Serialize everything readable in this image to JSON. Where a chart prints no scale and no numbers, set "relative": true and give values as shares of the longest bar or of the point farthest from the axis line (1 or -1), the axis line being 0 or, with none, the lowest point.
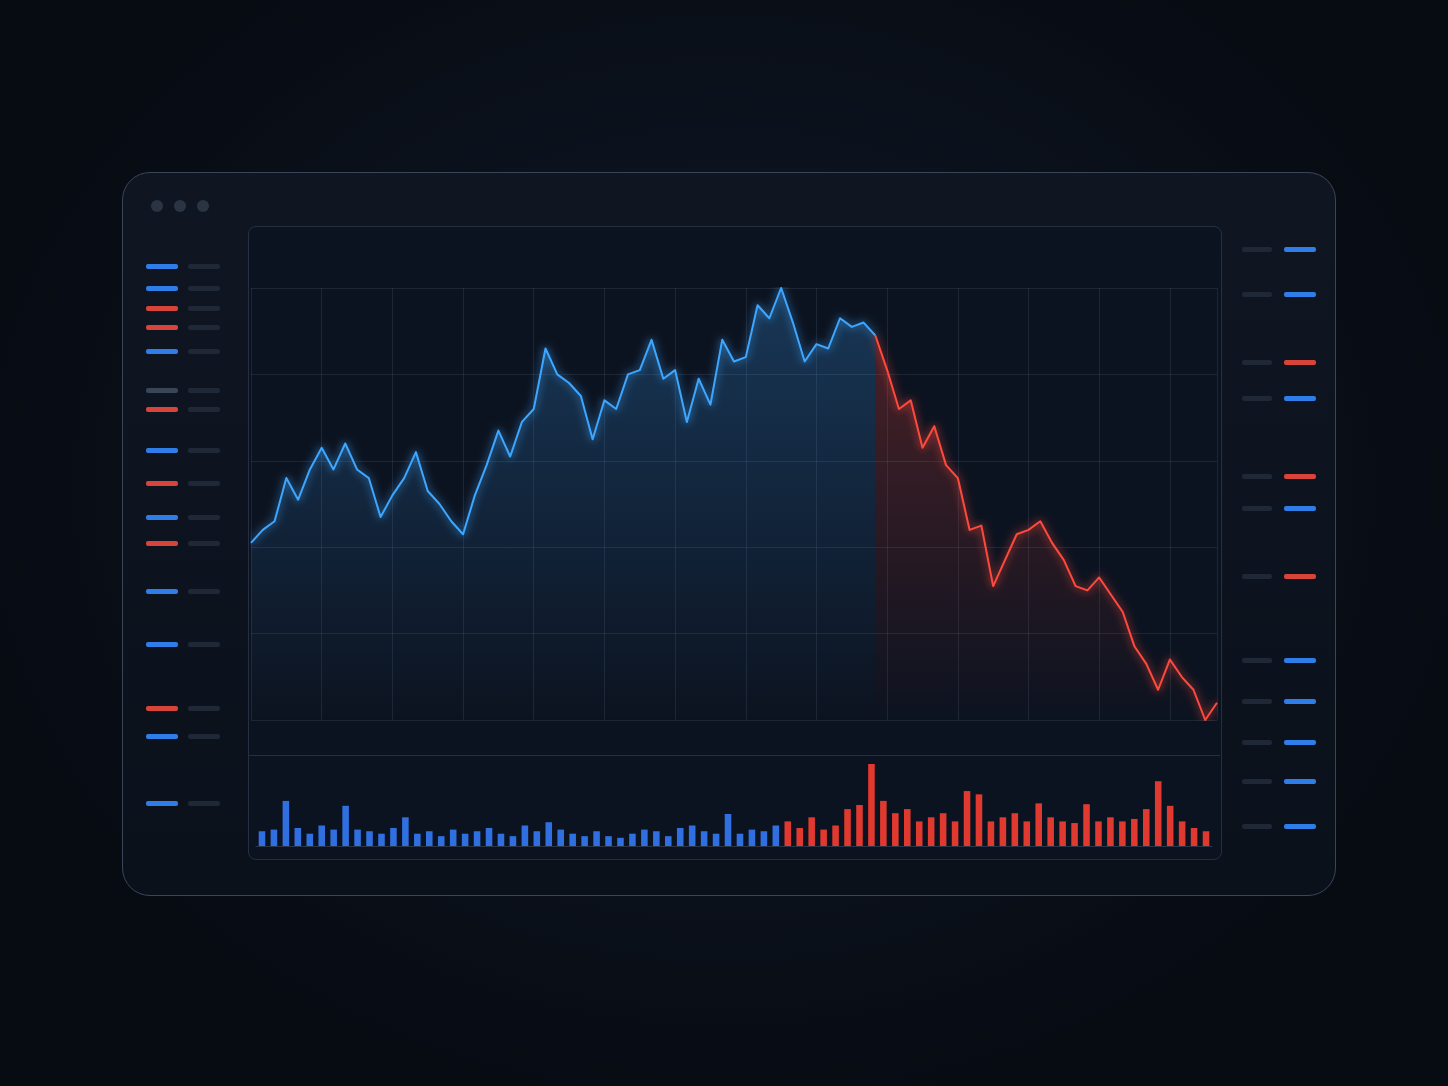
{
  "chart_data": [
    {
      "type": "area",
      "relative": true,
      "grid": true,
      "marker": "none",
      "categories": [
        null,
        null,
        null,
        null,
        null,
        null,
        null,
        null,
        null,
        null,
        null,
        null,
        null,
        null,
        null,
        null,
        null,
        null,
        null,
        null,
        null,
        null,
        null,
        null,
        null,
        null,
        null,
        null,
        null,
        null,
        null,
        null,
        null,
        null,
        null,
        null,
        null,
        null,
        null,
        null,
        null,
        null,
        null,
        null,
        null,
        null,
        null,
        null,
        null,
        null,
        null,
        null,
        null,
        null,
        null,
        null,
        null,
        null,
        null,
        null,
        null,
        null,
        null,
        null,
        null,
        null,
        null,
        null,
        null,
        null,
        null,
        null,
        null,
        null,
        null,
        null,
        null,
        null,
        null,
        null,
        null,
        null,
        null
      ],
      "series": [
        {
          "color": "#3ea6ff",
          "values": [
            0.41,
            0.44,
            0.46,
            0.56,
            0.51,
            0.58,
            0.63,
            0.58,
            0.64,
            0.58,
            0.56,
            0.47,
            0.52,
            0.56,
            0.62,
            0.53,
            0.5,
            0.46,
            0.43,
            0.52,
            0.59,
            0.67,
            0.61,
            0.69,
            0.72,
            0.86,
            0.8,
            0.78,
            0.75,
            0.65,
            0.74,
            0.72,
            0.8,
            0.81,
            0.88,
            0.79,
            0.81,
            0.69,
            0.79,
            0.73,
            0.88,
            0.83,
            0.84,
            0.96,
            0.93,
            1,
            0.92,
            0.83,
            0.87,
            0.86,
            0.93,
            0.91,
            0.92,
            0.89,
            null,
            null,
            null,
            null,
            null,
            null,
            null,
            null,
            null,
            null,
            null,
            null,
            null,
            null,
            null,
            null,
            null,
            null,
            null,
            null,
            null,
            null,
            null,
            null,
            null,
            null,
            null,
            null,
            null
          ]
        },
        {
          "color": "#ff4a3d",
          "values": [
            null,
            null,
            null,
            null,
            null,
            null,
            null,
            null,
            null,
            null,
            null,
            null,
            null,
            null,
            null,
            null,
            null,
            null,
            null,
            null,
            null,
            null,
            null,
            null,
            null,
            null,
            null,
            null,
            null,
            null,
            null,
            null,
            null,
            null,
            null,
            null,
            null,
            null,
            null,
            null,
            null,
            null,
            null,
            null,
            null,
            null,
            null,
            null,
            null,
            null,
            null,
            null,
            null,
            0.89,
            0.81,
            0.72,
            0.74,
            0.63,
            0.68,
            0.59,
            0.56,
            0.44,
            0.45,
            0.31,
            0.37,
            0.43,
            0.44,
            0.46,
            0.41,
            0.37,
            0.31,
            0.3,
            0.33,
            0.29,
            0.25,
            0.17,
            0.13,
            0.07,
            0.14,
            0.1,
            0.07,
            0,
            0.04
          ]
        }
      ]
    },
    {
      "type": "bar",
      "relative": true,
      "categories": [
        null,
        null,
        null,
        null,
        null,
        null,
        null,
        null,
        null,
        null,
        null,
        null,
        null,
        null,
        null,
        null,
        null,
        null,
        null,
        null,
        null,
        null,
        null,
        null,
        null,
        null,
        null,
        null,
        null,
        null,
        null,
        null,
        null,
        null,
        null,
        null,
        null,
        null,
        null,
        null,
        null,
        null,
        null,
        null,
        null,
        null,
        null,
        null,
        null,
        null,
        null,
        null,
        null,
        null,
        null,
        null,
        null,
        null,
        null,
        null,
        null,
        null,
        null,
        null,
        null,
        null,
        null,
        null,
        null,
        null,
        null,
        null,
        null,
        null,
        null,
        null,
        null,
        null,
        null,
        null
      ],
      "values": [
        0.18,
        0.2,
        0.55,
        0.22,
        0.15,
        0.25,
        0.2,
        0.49,
        0.2,
        0.18,
        0.15,
        0.22,
        0.35,
        0.15,
        0.18,
        0.12,
        0.2,
        0.15,
        0.18,
        0.22,
        0.15,
        0.12,
        0.25,
        0.18,
        0.29,
        0.2,
        0.15,
        0.12,
        0.18,
        0.12,
        0.1,
        0.15,
        0.2,
        0.18,
        0.12,
        0.22,
        0.25,
        0.18,
        0.15,
        0.39,
        0.15,
        0.2,
        0.18,
        0.25,
        0.3,
        0.22,
        0.35,
        0.2,
        0.25,
        0.45,
        0.5,
        1,
        0.55,
        0.4,
        0.45,
        0.3,
        0.35,
        0.4,
        0.3,
        0.67,
        0.63,
        0.3,
        0.35,
        0.4,
        0.3,
        0.52,
        0.35,
        0.3,
        0.28,
        0.51,
        0.3,
        0.35,
        0.3,
        0.33,
        0.45,
        0.79,
        0.49,
        0.3,
        0.22,
        0.18
      ],
      "colors": [
        "#2f6fe0",
        "#2f6fe0",
        "#2f6fe0",
        "#2f6fe0",
        "#2f6fe0",
        "#2f6fe0",
        "#2f6fe0",
        "#2f6fe0",
        "#2f6fe0",
        "#2f6fe0",
        "#2f6fe0",
        "#2f6fe0",
        "#2f6fe0",
        "#2f6fe0",
        "#2f6fe0",
        "#2f6fe0",
        "#2f6fe0",
        "#2f6fe0",
        "#2f6fe0",
        "#2f6fe0",
        "#2f6fe0",
        "#2f6fe0",
        "#2f6fe0",
        "#2f6fe0",
        "#2f6fe0",
        "#2f6fe0",
        "#2f6fe0",
        "#2f6fe0",
        "#2f6fe0",
        "#2f6fe0",
        "#2f6fe0",
        "#2f6fe0",
        "#2f6fe0",
        "#2f6fe0",
        "#2f6fe0",
        "#2f6fe0",
        "#2f6fe0",
        "#2f6fe0",
        "#2f6fe0",
        "#2f6fe0",
        "#2f6fe0",
        "#2f6fe0",
        "#2f6fe0",
        "#2f6fe0",
        "#e0392f",
        "#e0392f",
        "#e0392f",
        "#e0392f",
        "#e0392f",
        "#e0392f",
        "#e0392f",
        "#e0392f",
        "#e0392f",
        "#e0392f",
        "#e0392f",
        "#e0392f",
        "#e0392f",
        "#e0392f",
        "#e0392f",
        "#e0392f",
        "#e0392f",
        "#e0392f",
        "#e0392f",
        "#e0392f",
        "#e0392f",
        "#e0392f",
        "#e0392f",
        "#e0392f",
        "#e0392f",
        "#e0392f",
        "#e0392f",
        "#e0392f",
        "#e0392f",
        "#e0392f",
        "#e0392f",
        "#e0392f",
        "#e0392f",
        "#e0392f",
        "#e0392f",
        "#e0392f"
      ]
    }
  ]
}
